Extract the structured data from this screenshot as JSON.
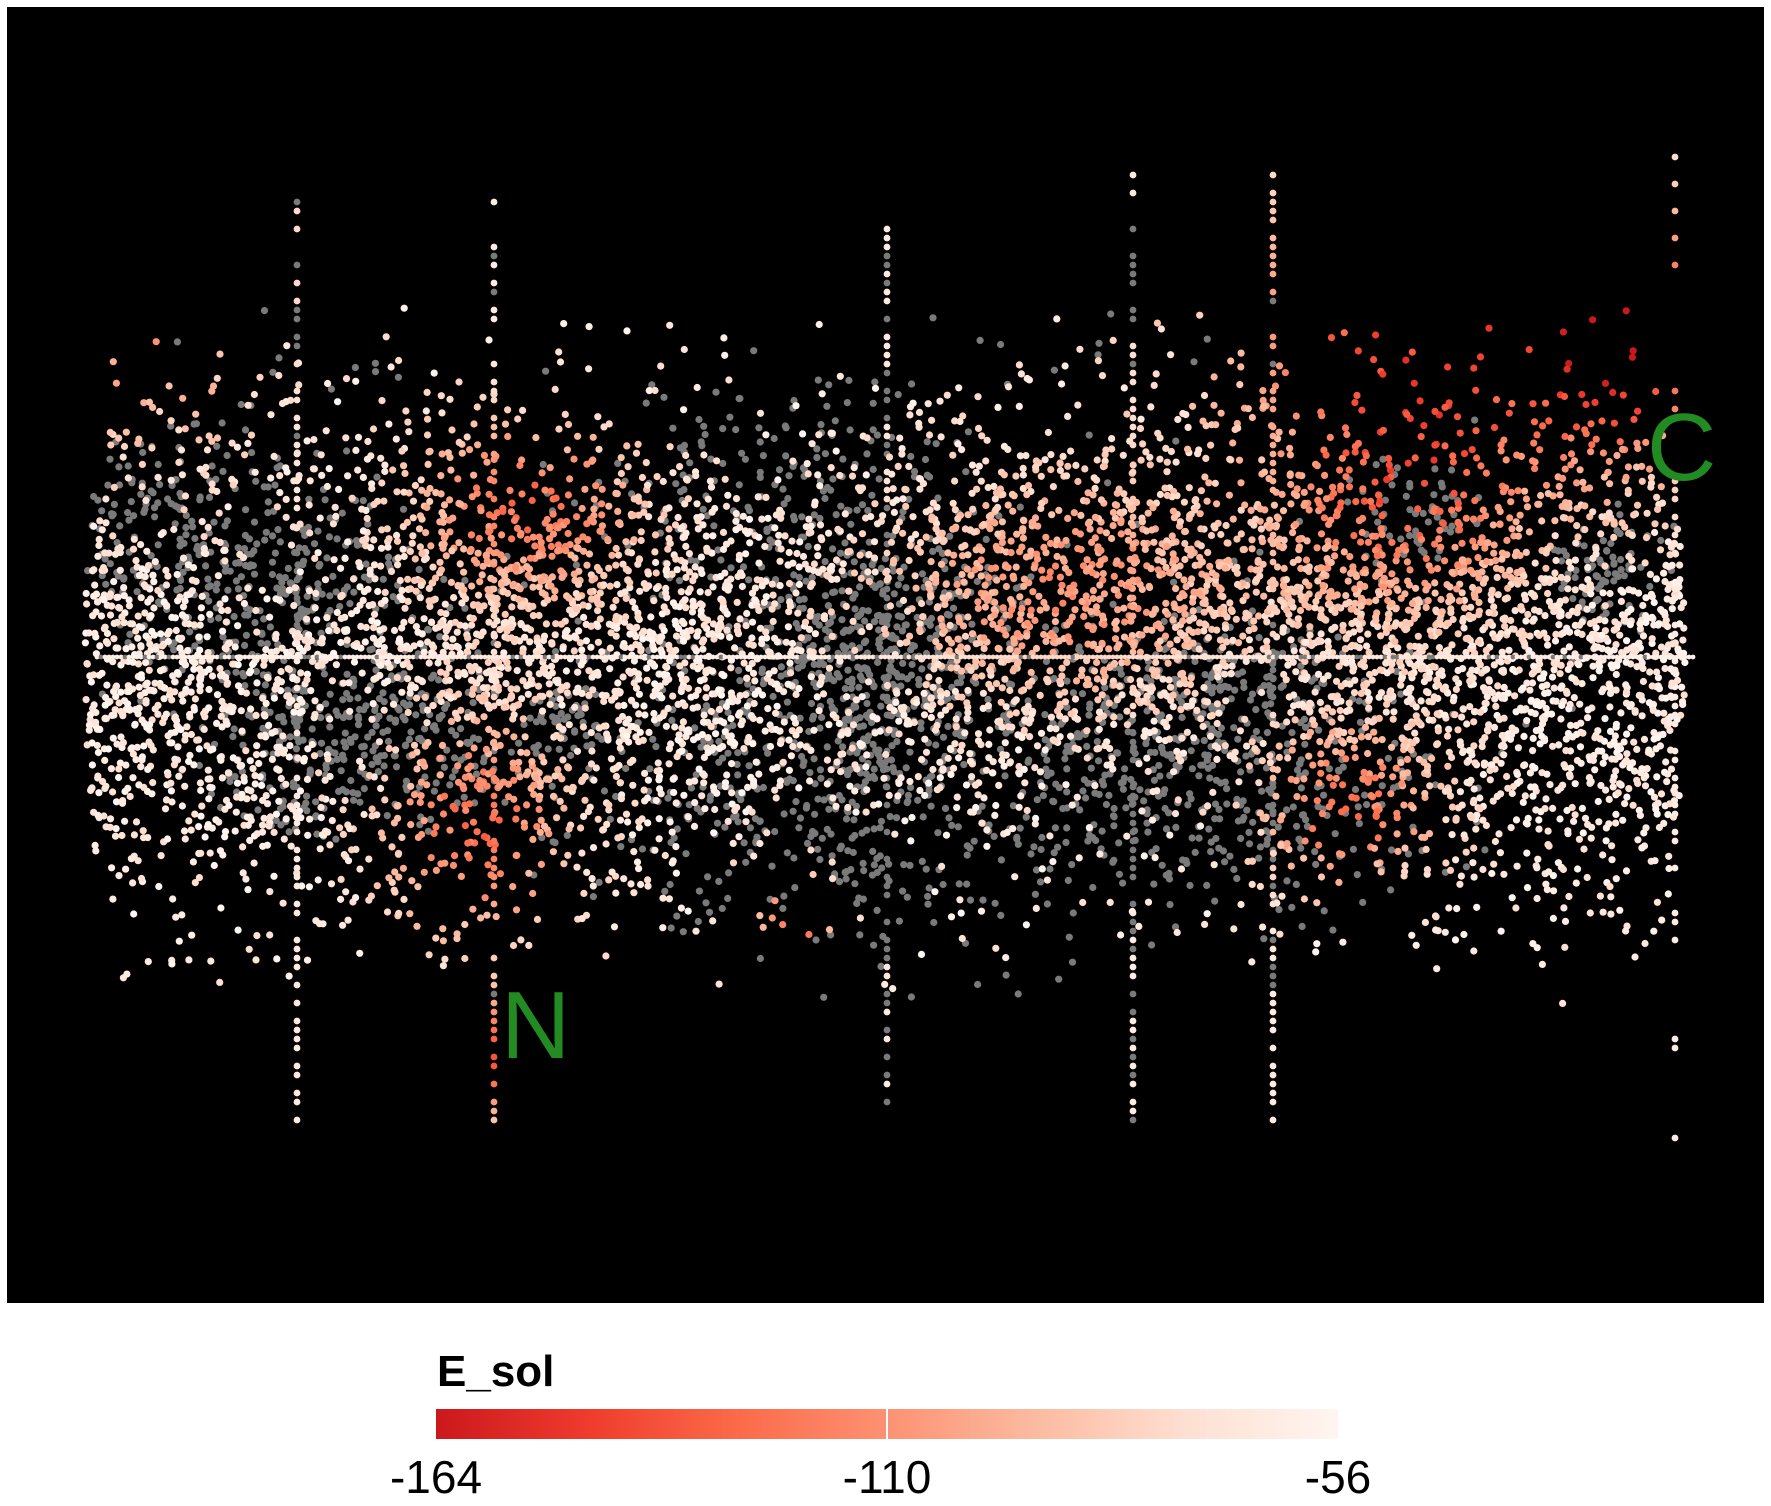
{
  "chart_data": {
    "type": "scatter",
    "title": "",
    "colorbar": {
      "title": "E_sol",
      "ticks": [
        -164,
        -110,
        -56
      ],
      "range": [
        -164,
        -56
      ],
      "colors": [
        "#cb181d",
        "#ef3b2c",
        "#fb6a4a",
        "#fc9272",
        "#fcbba1",
        "#fee0d2",
        "#fff5f0"
      ]
    },
    "missing_color": "#7a7a7a",
    "background": "#000000",
    "annotations": [
      {
        "text": "C",
        "color": "#228b22"
      },
      {
        "text": "N",
        "color": "#228b22"
      }
    ]
  }
}
